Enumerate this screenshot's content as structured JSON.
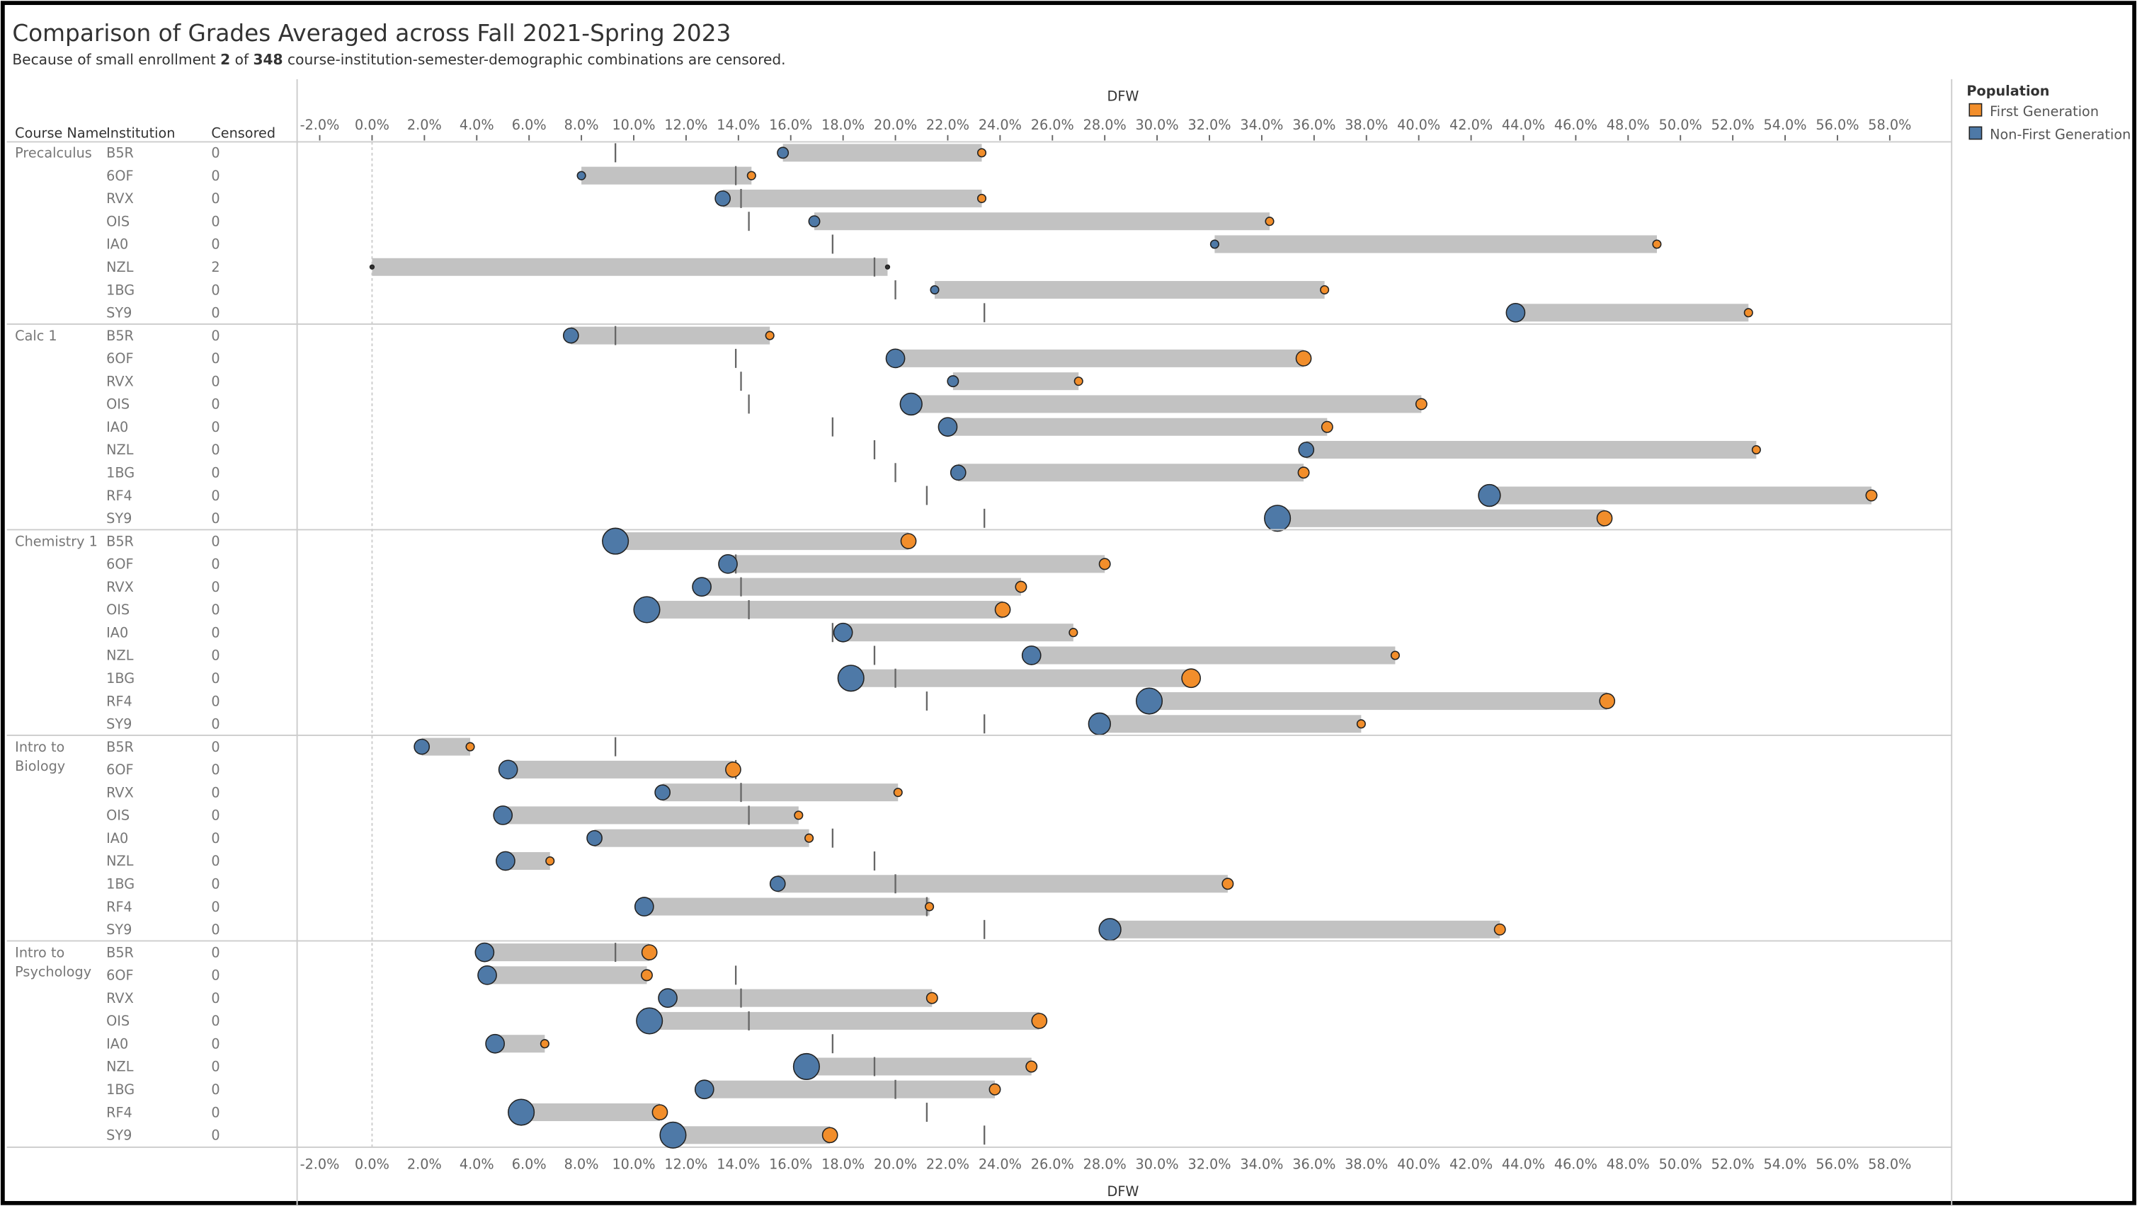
{
  "chart_data": {
    "type": "dot-range",
    "title": "Comparison of Grades Averaged across Fall 2021-Spring 2023",
    "subtitle": {
      "prefix": "Because of small enrollment ",
      "censored": "2",
      "of": " of ",
      "total": "348",
      "suffix": " course-institution-semester-demographic combinations are censored."
    },
    "columns": {
      "course": "Course Name",
      "institution": "Institution",
      "censored": "Censored"
    },
    "xlabel": "DFW",
    "xlim": [
      -3,
      60
    ],
    "xticks": [
      -2,
      0,
      2,
      4,
      6,
      8,
      10,
      12,
      14,
      16,
      18,
      20,
      22,
      24,
      26,
      28,
      30,
      32,
      34,
      36,
      38,
      40,
      42,
      44,
      46,
      48,
      50,
      52,
      54,
      56,
      58
    ],
    "tick_format": "percent_1dp",
    "legend": {
      "title": "Population",
      "placement": "top-right",
      "items": [
        {
          "label": "First Generation",
          "color": "#f28e2b"
        },
        {
          "label": "Non-First Generation",
          "color": "#4e79a7"
        }
      ]
    },
    "reference_lines_by_institution": {
      "B5R": 9.3,
      "6OF": 13.9,
      "RVX": 14.1,
      "OIS": 14.4,
      "IA0": 17.6,
      "NZL": 19.2,
      "1BG": 20.0,
      "RF4": 21.2,
      "SY9": 23.4
    },
    "size_note": "size levels 0-6 encode relative mark size",
    "courses": [
      {
        "name": "Precalculus",
        "rows": [
          {
            "inst": "B5R",
            "censored": "0",
            "nfg": 15.7,
            "fg": 23.3,
            "ns": 2,
            "fs": 1
          },
          {
            "inst": "6OF",
            "censored": "0",
            "nfg": 8.0,
            "fg": 14.5,
            "ns": 1,
            "fs": 1
          },
          {
            "inst": "RVX",
            "censored": "0",
            "nfg": 13.4,
            "fg": 23.3,
            "ns": 3,
            "fs": 1
          },
          {
            "inst": "OIS",
            "censored": "0",
            "nfg": 16.9,
            "fg": 34.3,
            "ns": 2,
            "fs": 1
          },
          {
            "inst": "IA0",
            "censored": "0",
            "nfg": 32.2,
            "fg": 49.1,
            "ns": 1,
            "fs": 1
          },
          {
            "inst": "NZL",
            "censored": "2",
            "nfg": 19.7,
            "fg": 0.0,
            "ns": 0,
            "fs": 0
          },
          {
            "inst": "1BG",
            "censored": "0",
            "nfg": 21.5,
            "fg": 36.4,
            "ns": 1,
            "fs": 1
          },
          {
            "inst": "SY9",
            "censored": "0",
            "nfg": 43.7,
            "fg": 52.6,
            "ns": 4,
            "fs": 1
          }
        ]
      },
      {
        "name": "Calc 1",
        "rows": [
          {
            "inst": "B5R",
            "censored": "0",
            "nfg": 7.6,
            "fg": 15.2,
            "ns": 3,
            "fs": 1
          },
          {
            "inst": "6OF",
            "censored": "0",
            "nfg": 20.0,
            "fg": 35.6,
            "ns": 4,
            "fs": 3
          },
          {
            "inst": "RVX",
            "censored": "0",
            "nfg": 22.2,
            "fg": 27.0,
            "ns": 2,
            "fs": 1
          },
          {
            "inst": "OIS",
            "censored": "0",
            "nfg": 20.6,
            "fg": 40.1,
            "ns": 5,
            "fs": 2
          },
          {
            "inst": "IA0",
            "censored": "0",
            "nfg": 22.0,
            "fg": 36.5,
            "ns": 4,
            "fs": 2
          },
          {
            "inst": "NZL",
            "censored": "0",
            "nfg": 35.7,
            "fg": 52.9,
            "ns": 3,
            "fs": 1
          },
          {
            "inst": "1BG",
            "censored": "0",
            "nfg": 22.4,
            "fg": 35.6,
            "ns": 3,
            "fs": 2
          },
          {
            "inst": "RF4",
            "censored": "0",
            "nfg": 42.7,
            "fg": 57.3,
            "ns": 5,
            "fs": 2
          },
          {
            "inst": "SY9",
            "censored": "0",
            "nfg": 34.6,
            "fg": 47.1,
            "ns": 6,
            "fs": 3
          }
        ]
      },
      {
        "name": "Chemistry 1",
        "rows": [
          {
            "inst": "B5R",
            "censored": "0",
            "nfg": 9.3,
            "fg": 20.5,
            "ns": 6,
            "fs": 3
          },
          {
            "inst": "6OF",
            "censored": "0",
            "nfg": 13.6,
            "fg": 28.0,
            "ns": 4,
            "fs": 2
          },
          {
            "inst": "RVX",
            "censored": "0",
            "nfg": 12.6,
            "fg": 24.8,
            "ns": 4,
            "fs": 2
          },
          {
            "inst": "OIS",
            "censored": "0",
            "nfg": 10.5,
            "fg": 24.1,
            "ns": 6,
            "fs": 3
          },
          {
            "inst": "IA0",
            "censored": "0",
            "nfg": 18.0,
            "fg": 26.8,
            "ns": 4,
            "fs": 1
          },
          {
            "inst": "NZL",
            "censored": "0",
            "nfg": 25.2,
            "fg": 39.1,
            "ns": 4,
            "fs": 1
          },
          {
            "inst": "1BG",
            "censored": "0",
            "nfg": 18.3,
            "fg": 31.3,
            "ns": 6,
            "fs": 4
          },
          {
            "inst": "RF4",
            "censored": "0",
            "nfg": 29.7,
            "fg": 47.2,
            "ns": 6,
            "fs": 3
          },
          {
            "inst": "SY9",
            "censored": "0",
            "nfg": 27.8,
            "fg": 37.8,
            "ns": 5,
            "fs": 1
          }
        ]
      },
      {
        "name": "Intro to Biology",
        "rows": [
          {
            "inst": "B5R",
            "censored": "0",
            "nfg": 1.9,
            "fg": 3.75,
            "ns": 3,
            "fs": 1
          },
          {
            "inst": "6OF",
            "censored": "0",
            "nfg": 5.2,
            "fg": 13.8,
            "ns": 4,
            "fs": 3
          },
          {
            "inst": "RVX",
            "censored": "0",
            "nfg": 11.1,
            "fg": 20.1,
            "ns": 3,
            "fs": 1
          },
          {
            "inst": "OIS",
            "censored": "0",
            "nfg": 5.0,
            "fg": 16.3,
            "ns": 4,
            "fs": 1
          },
          {
            "inst": "IA0",
            "censored": "0",
            "nfg": 8.5,
            "fg": 16.7,
            "ns": 3,
            "fs": 1
          },
          {
            "inst": "NZL",
            "censored": "0",
            "nfg": 5.1,
            "fg": 6.8,
            "ns": 4,
            "fs": 1
          },
          {
            "inst": "1BG",
            "censored": "0",
            "nfg": 15.5,
            "fg": 32.7,
            "ns": 3,
            "fs": 2
          },
          {
            "inst": "RF4",
            "censored": "0",
            "nfg": 10.4,
            "fg": 21.3,
            "ns": 4,
            "fs": 1
          },
          {
            "inst": "SY9",
            "censored": "0",
            "nfg": 28.2,
            "fg": 43.1,
            "ns": 5,
            "fs": 2
          }
        ]
      },
      {
        "name": "Intro to Psychology",
        "rows": [
          {
            "inst": "B5R",
            "censored": "0",
            "nfg": 4.3,
            "fg": 10.6,
            "ns": 4,
            "fs": 3
          },
          {
            "inst": "6OF",
            "censored": "0",
            "nfg": 4.4,
            "fg": 10.5,
            "ns": 4,
            "fs": 2
          },
          {
            "inst": "RVX",
            "censored": "0",
            "nfg": 11.3,
            "fg": 21.4,
            "ns": 4,
            "fs": 2
          },
          {
            "inst": "OIS",
            "censored": "0",
            "nfg": 10.6,
            "fg": 25.5,
            "ns": 6,
            "fs": 3
          },
          {
            "inst": "IA0",
            "censored": "0",
            "nfg": 4.7,
            "fg": 6.6,
            "ns": 4,
            "fs": 1
          },
          {
            "inst": "NZL",
            "censored": "0",
            "nfg": 16.6,
            "fg": 25.2,
            "ns": 6,
            "fs": 2
          },
          {
            "inst": "1BG",
            "censored": "0",
            "nfg": 12.7,
            "fg": 23.8,
            "ns": 4,
            "fs": 2
          },
          {
            "inst": "RF4",
            "censored": "0",
            "nfg": 5.7,
            "fg": 11.0,
            "ns": 6,
            "fs": 3
          },
          {
            "inst": "SY9",
            "censored": "0",
            "nfg": 11.5,
            "fg": 17.5,
            "ns": 6,
            "fs": 3
          }
        ]
      }
    ]
  }
}
